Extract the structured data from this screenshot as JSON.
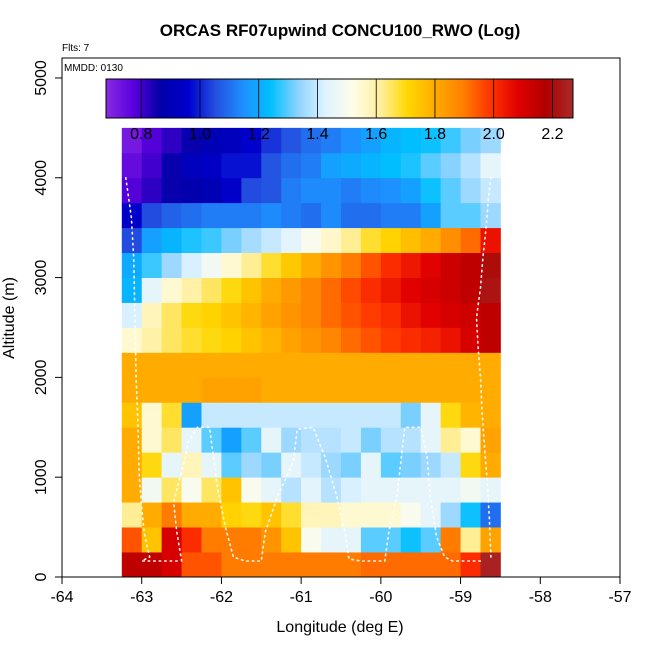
{
  "chart_data": {
    "type": "heatmap",
    "title": "ORCAS RF07upwind CONCU100_RWO (Log)",
    "annotations": {
      "flights": "Flts: 7",
      "date": "MMDD: 0130"
    },
    "xlabel": "Longitude (deg E)",
    "ylabel": "Altitude (m)",
    "xlim": [
      -64,
      -57
    ],
    "ylim": [
      0,
      5200
    ],
    "x_ticks": [
      -64,
      -63,
      -62,
      -61,
      -60,
      -59,
      -58,
      -57
    ],
    "x_tick_labels": [
      "-64",
      "-63",
      "-62",
      "-61",
      "-60",
      "-59",
      "-58",
      "-57"
    ],
    "y_ticks": [
      0,
      1000,
      2000,
      3000,
      4000,
      5000
    ],
    "y_tick_labels": [
      "0",
      "1000",
      "2000",
      "3000",
      "4000",
      "5000"
    ],
    "colorbar": {
      "range": [
        0.68,
        2.27
      ],
      "ticks": [
        0.8,
        1.0,
        1.2,
        1.4,
        1.6,
        1.8,
        2.0,
        2.2
      ],
      "tick_labels": [
        "0.8",
        "1.0",
        "1.2",
        "1.4",
        "1.6",
        "1.8",
        "2.0",
        "2.2"
      ],
      "colors": [
        "#8a2be2",
        "#5a00dd",
        "#0000a8",
        "#0000cd",
        "#2450e0",
        "#1e90ff",
        "#00bfff",
        "#8fd3ff",
        "#dff3ff",
        "#fffde8",
        "#ffef9c",
        "#ffd700",
        "#ffaa00",
        "#ff7f00",
        "#ff3300",
        "#e00000",
        "#b00000",
        "#a82a2a"
      ]
    },
    "grid": {
      "lon_start": -63.25,
      "lon_end": -58.5,
      "lon_step": 0.25,
      "alt_start": 0,
      "alt_step": 250,
      "rows": [
        [
          2.15,
          2.15,
          2.1,
          1.95,
          1.95,
          1.9,
          1.9,
          1.9,
          1.9,
          1.9,
          1.9,
          1.9,
          1.92,
          1.92,
          1.92,
          1.92,
          1.92,
          2.0,
          2.25
        ],
        [
          1.95,
          1.75,
          2.1,
          2.0,
          1.9,
          1.9,
          1.9,
          1.85,
          1.75,
          1.5,
          1.45,
          1.45,
          1.3,
          1.3,
          1.25,
          1.3,
          1.9,
          1.62,
          1.82
        ],
        [
          1.62,
          1.8,
          1.9,
          1.8,
          1.8,
          1.72,
          1.7,
          1.75,
          1.68,
          1.58,
          1.58,
          1.55,
          1.55,
          1.55,
          1.5,
          1.45,
          1.35,
          1.25,
          1.1
        ],
        [
          1.8,
          1.48,
          1.65,
          1.5,
          1.65,
          1.75,
          1.5,
          1.45,
          1.38,
          1.44,
          1.38,
          1.42,
          1.45,
          1.45,
          1.45,
          1.45,
          1.45,
          1.48,
          1.45
        ],
        [
          1.8,
          1.7,
          1.45,
          1.58,
          1.45,
          1.3,
          1.35,
          1.32,
          1.45,
          1.4,
          1.35,
          1.32,
          1.45,
          1.3,
          1.32,
          1.35,
          1.4,
          1.7,
          1.8
        ],
        [
          1.8,
          1.55,
          1.65,
          1.45,
          1.3,
          1.18,
          1.3,
          1.45,
          1.35,
          1.38,
          1.38,
          1.4,
          1.32,
          1.38,
          1.38,
          1.45,
          1.62,
          1.55,
          1.82
        ],
        [
          1.75,
          1.55,
          1.68,
          1.18,
          1.4,
          1.4,
          1.4,
          1.4,
          1.4,
          1.4,
          1.4,
          1.4,
          1.4,
          1.4,
          1.32,
          1.45,
          1.7,
          1.78,
          1.8
        ],
        [
          1.8,
          1.8,
          1.8,
          1.8,
          1.82,
          1.82,
          1.82,
          1.8,
          1.8,
          1.8,
          1.8,
          1.8,
          1.8,
          1.8,
          1.8,
          1.8,
          1.8,
          1.8,
          1.8
        ],
        [
          1.8,
          1.8,
          1.8,
          1.8,
          1.8,
          1.8,
          1.8,
          1.8,
          1.8,
          1.8,
          1.8,
          1.8,
          1.8,
          1.8,
          1.8,
          1.8,
          1.8,
          1.8,
          1.8
        ],
        [
          1.55,
          1.6,
          1.65,
          1.68,
          1.7,
          1.72,
          1.75,
          1.78,
          1.82,
          1.85,
          1.88,
          1.92,
          1.95,
          1.98,
          2.0,
          2.02,
          2.05,
          2.1,
          2.15
        ],
        [
          1.42,
          1.58,
          1.65,
          1.7,
          1.72,
          1.75,
          1.78,
          1.82,
          1.85,
          1.88,
          1.92,
          1.95,
          1.98,
          2.0,
          2.05,
          2.08,
          2.1,
          2.12,
          2.15
        ],
        [
          1.22,
          1.45,
          1.55,
          1.6,
          1.65,
          1.7,
          1.75,
          1.8,
          1.84,
          1.88,
          1.92,
          1.96,
          2.0,
          2.04,
          2.08,
          2.1,
          2.12,
          2.15,
          2.22
        ],
        [
          1.2,
          1.28,
          1.35,
          1.42,
          1.48,
          1.55,
          1.62,
          1.68,
          1.74,
          1.8,
          1.85,
          1.9,
          1.95,
          2.0,
          2.04,
          2.08,
          2.12,
          2.15,
          2.2
        ],
        [
          1.05,
          1.18,
          1.22,
          1.26,
          1.28,
          1.32,
          1.36,
          1.4,
          1.44,
          1.5,
          1.56,
          1.62,
          1.68,
          1.72,
          1.76,
          1.8,
          1.86,
          1.92,
          2.05
        ],
        [
          0.95,
          1.05,
          1.08,
          1.1,
          1.12,
          1.12,
          1.12,
          1.14,
          1.12,
          1.1,
          1.14,
          1.1,
          1.1,
          1.12,
          1.12,
          1.18,
          1.3,
          1.3,
          1.35
        ],
        [
          0.78,
          0.82,
          0.86,
          0.88,
          0.9,
          0.95,
          1.05,
          1.06,
          1.12,
          1.14,
          1.14,
          1.12,
          1.14,
          1.15,
          1.18,
          1.25,
          1.3,
          1.35,
          1.4
        ],
        [
          0.75,
          0.8,
          0.86,
          0.92,
          0.94,
          0.98,
          0.98,
          1.06,
          1.1,
          1.12,
          1.18,
          1.2,
          1.22,
          1.24,
          1.26,
          1.3,
          1.33,
          1.38,
          1.45
        ],
        [
          0.72,
          0.78,
          0.82,
          0.86,
          0.9,
          0.92,
          0.96,
          1.02,
          1.06,
          1.1,
          1.12,
          1.15,
          1.18,
          1.22,
          1.24,
          1.25,
          1.28,
          1.32,
          1.35
        ]
      ]
    },
    "flight_track": [
      [
        [
          -63.2,
          4000
        ],
        [
          -63.13,
          3600
        ],
        [
          -63.1,
          3200
        ],
        [
          -63.09,
          2800
        ],
        [
          -63.08,
          2400
        ],
        [
          -63.07,
          2000
        ],
        [
          -63.05,
          1600
        ],
        [
          -63.04,
          1300
        ],
        [
          -63.03,
          1000
        ],
        [
          -63.0,
          700
        ],
        [
          -62.97,
          450
        ],
        [
          -62.93,
          300
        ],
        [
          -62.9,
          200
        ],
        [
          -63.0,
          160
        ],
        [
          -62.55,
          160
        ]
      ],
      [
        [
          -62.5,
          160
        ],
        [
          -62.56,
          450
        ],
        [
          -62.6,
          750
        ],
        [
          -62.52,
          1000
        ],
        [
          -62.45,
          1200
        ],
        [
          -62.42,
          1350
        ],
        [
          -62.3,
          1500
        ],
        [
          -62.15,
          1500
        ],
        [
          -62.1,
          1200
        ],
        [
          -62.05,
          900
        ],
        [
          -61.95,
          500
        ],
        [
          -61.85,
          200
        ],
        [
          -61.7,
          160
        ],
        [
          -61.5,
          160
        ],
        [
          -61.45,
          450
        ],
        [
          -61.3,
          800
        ],
        [
          -61.1,
          1150
        ],
        [
          -61.05,
          1480
        ],
        [
          -60.85,
          1500
        ],
        [
          -60.7,
          1200
        ],
        [
          -60.55,
          800
        ],
        [
          -60.45,
          450
        ],
        [
          -60.4,
          180
        ],
        [
          -60.25,
          160
        ],
        [
          -59.95,
          160
        ],
        [
          -59.9,
          450
        ],
        [
          -59.8,
          800
        ],
        [
          -59.75,
          1150
        ],
        [
          -59.7,
          1500
        ],
        [
          -59.5,
          1500
        ],
        [
          -59.42,
          1200
        ],
        [
          -59.38,
          800
        ],
        [
          -59.3,
          400
        ],
        [
          -59.2,
          200
        ],
        [
          -59.1,
          160
        ],
        [
          -58.75,
          160
        ]
      ],
      [
        [
          -58.62,
          200
        ],
        [
          -58.64,
          600
        ],
        [
          -58.67,
          1000
        ],
        [
          -58.7,
          1300
        ],
        [
          -58.73,
          1650
        ],
        [
          -58.75,
          2000
        ],
        [
          -58.78,
          2300
        ],
        [
          -58.8,
          2600
        ],
        [
          -58.75,
          2900
        ],
        [
          -58.72,
          3200
        ],
        [
          -58.68,
          3500
        ],
        [
          -58.65,
          3800
        ],
        [
          -58.62,
          4000
        ]
      ]
    ]
  }
}
